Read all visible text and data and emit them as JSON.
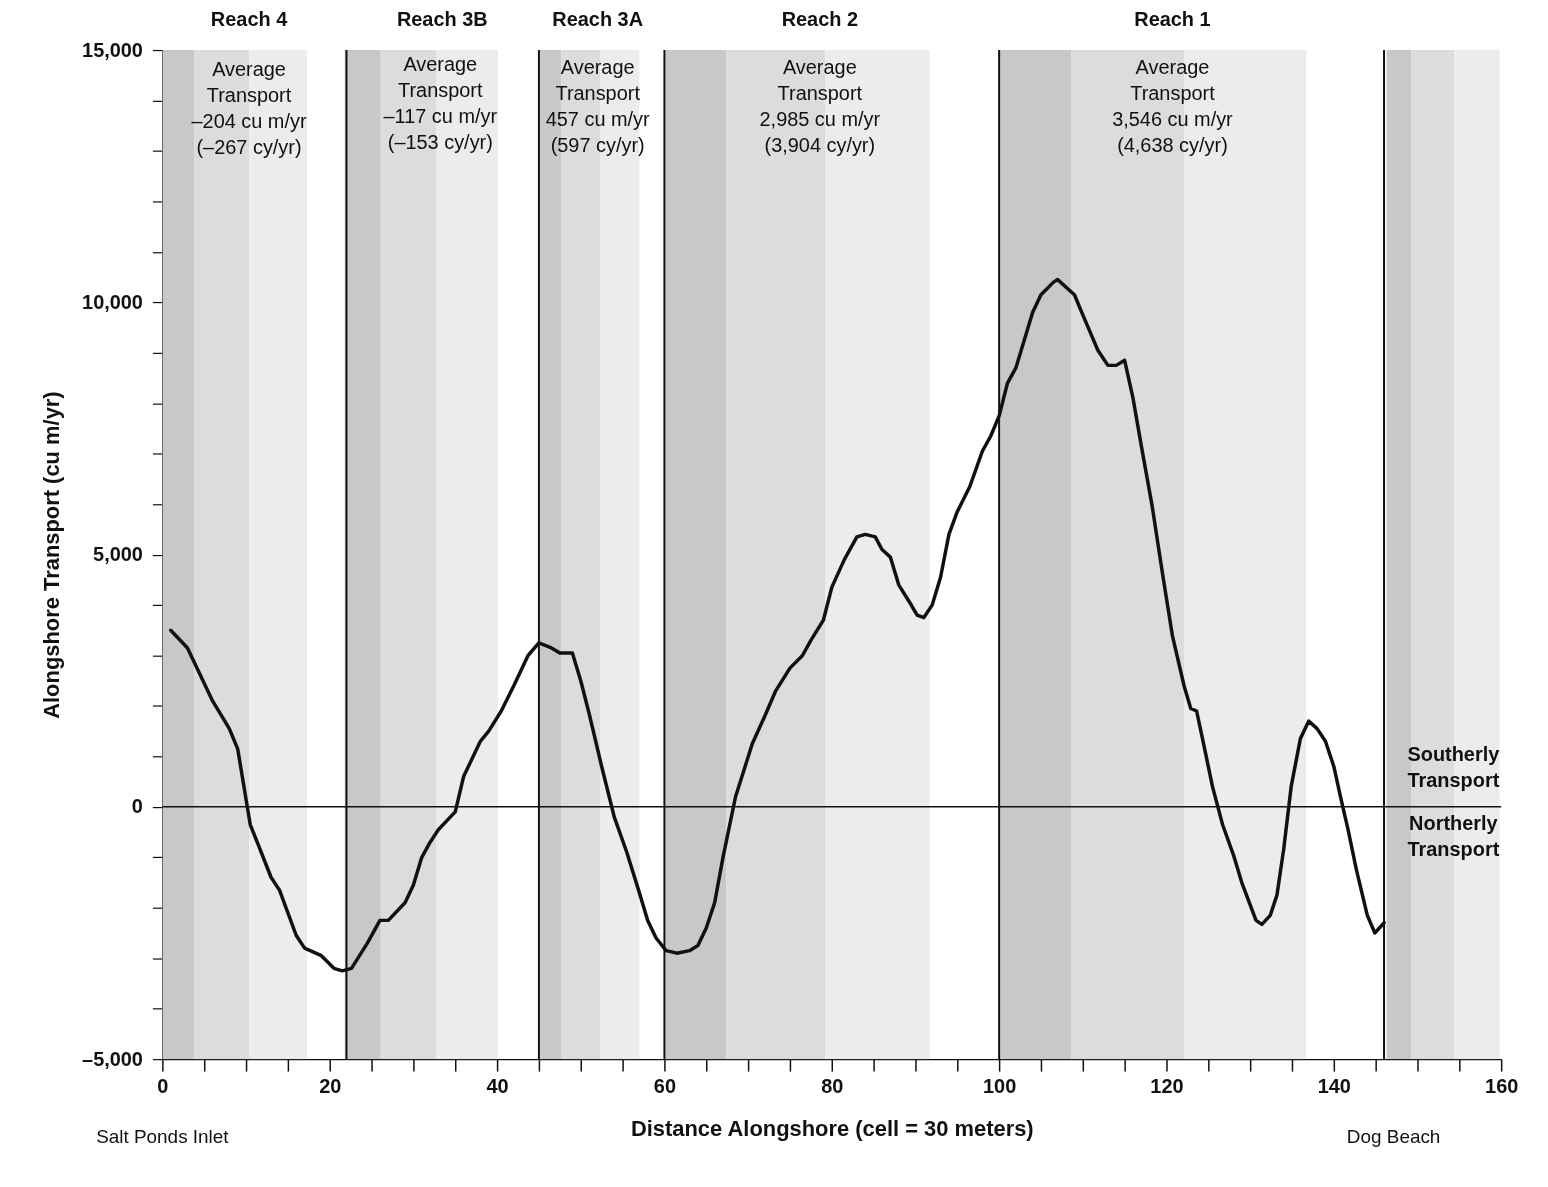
{
  "chart_data": {
    "type": "line",
    "xlabel": "Distance Alongshore (cell = 30 meters)",
    "ylabel": "Alongshore Transport (cu m/yr)",
    "xlim": [
      0,
      160
    ],
    "ylim": [
      -5000,
      15000
    ],
    "xticks": [
      0,
      {
        "value": 5,
        "label": null
      },
      {
        "value": 10,
        "label": null
      },
      {
        "value": 15,
        "label": null
      },
      20,
      {
        "value": 25,
        "label": null
      },
      {
        "value": 30,
        "label": null
      },
      {
        "value": 35,
        "label": null
      },
      40,
      {
        "value": 45,
        "label": null
      },
      {
        "value": 50,
        "label": null
      },
      {
        "value": 55,
        "label": null
      },
      60,
      {
        "value": 65,
        "label": null
      },
      {
        "value": 70,
        "label": null
      },
      {
        "value": 75,
        "label": null
      },
      80,
      {
        "value": 85,
        "label": null
      },
      {
        "value": 90,
        "label": null
      },
      {
        "value": 95,
        "label": null
      },
      100,
      {
        "value": 105,
        "label": null
      },
      {
        "value": 110,
        "label": null
      },
      {
        "value": 115,
        "label": null
      },
      120,
      {
        "value": 125,
        "label": null
      },
      {
        "value": 130,
        "label": null
      },
      {
        "value": 135,
        "label": null
      },
      140,
      {
        "value": 145,
        "label": null
      },
      {
        "value": 150,
        "label": null
      },
      {
        "value": 155,
        "label": null
      },
      160
    ],
    "yticks": [
      {
        "value": -5000,
        "label": "–5,000"
      },
      {
        "value": -4000,
        "label": null
      },
      {
        "value": -3000,
        "label": null
      },
      {
        "value": -2000,
        "label": null
      },
      {
        "value": -1000,
        "label": null
      },
      0,
      {
        "value": 1000,
        "label": null
      },
      {
        "value": 2000,
        "label": null
      },
      {
        "value": 3000,
        "label": null
      },
      {
        "value": 4000,
        "label": null
      },
      {
        "value": 5000,
        "label": "5,000"
      },
      {
        "value": 6000,
        "label": null
      },
      {
        "value": 7000,
        "label": null
      },
      {
        "value": 8000,
        "label": null
      },
      {
        "value": 9000,
        "label": null
      },
      {
        "value": 10000,
        "label": "10,000"
      },
      {
        "value": 11000,
        "label": null
      },
      {
        "value": 12000,
        "label": null
      },
      {
        "value": 13000,
        "label": null
      },
      {
        "value": 14000,
        "label": null
      },
      {
        "value": 15000,
        "label": "15,000"
      }
    ],
    "grid": false,
    "marker": "none",
    "line_style": "solid",
    "series": [
      {
        "color": "#111111",
        "x": [
          1,
          3,
          6,
          8,
          9,
          10.5,
          13,
          14,
          16,
          17,
          19,
          20.5,
          21.5,
          22.6,
          24.5,
          26,
          27,
          29,
          30,
          31,
          32,
          33,
          35,
          36,
          38,
          39,
          40.5,
          42,
          43.7,
          45,
          46.5,
          47.5,
          49,
          50,
          51,
          52.5,
          54,
          55.5,
          57,
          58,
          59,
          60.2,
          61.5,
          63,
          64,
          65,
          66,
          67,
          68.5,
          70.5,
          72,
          73.3,
          75,
          76.5,
          77.5,
          79,
          80,
          81.5,
          83,
          84,
          85.2,
          86,
          87,
          88,
          89.5,
          90.2,
          91,
          92,
          93,
          94,
          95,
          96.5,
          98,
          99,
          100,
          101,
          102,
          103,
          104,
          105,
          106.5,
          107,
          108,
          109,
          110,
          111.8,
          113,
          114,
          115,
          116,
          117,
          118.3,
          119.5,
          120.7,
          122.1,
          122.9,
          123.6,
          124.5,
          125.5,
          126.7,
          128,
          129,
          130.7,
          131.4,
          132.4,
          133.2,
          134,
          134.9,
          136,
          137,
          138,
          139,
          140,
          140.8,
          141.7,
          142.7,
          144,
          144.9,
          146
        ],
        "values": [
          3500,
          3150,
          2100,
          1550,
          1150,
          -350,
          -1400,
          -1650,
          -2550,
          -2800,
          -2950,
          -3200,
          -3250,
          -3200,
          -2700,
          -2250,
          -2250,
          -1900,
          -1550,
          -1000,
          -700,
          -450,
          -100,
          600,
          1300,
          1500,
          1900,
          2400,
          3000,
          3250,
          3150,
          3050,
          3050,
          2500,
          1850,
          800,
          -200,
          -900,
          -1700,
          -2250,
          -2600,
          -2850,
          -2900,
          -2850,
          -2750,
          -2400,
          -1900,
          -1000,
          200,
          1250,
          1800,
          2300,
          2750,
          3000,
          3300,
          3700,
          4350,
          4900,
          5350,
          5400,
          5350,
          5100,
          4950,
          4400,
          4000,
          3800,
          3750,
          4000,
          4550,
          5400,
          5850,
          6350,
          7050,
          7350,
          7750,
          8400,
          8700,
          9250,
          9800,
          10150,
          10400,
          10450,
          10300,
          10150,
          9750,
          9050,
          8750,
          8750,
          8850,
          8100,
          7150,
          5950,
          4650,
          3400,
          2400,
          1950,
          1900,
          1200,
          400,
          -350,
          -950,
          -1500,
          -2250,
          -2330,
          -2150,
          -1750,
          -850,
          400,
          1350,
          1700,
          1550,
          1300,
          800,
          200,
          -450,
          -1250,
          -2150,
          -2500,
          -2300
        ]
      }
    ],
    "bands": [
      {
        "axis": "x",
        "from": 0,
        "to": 3.8,
        "color": "#c8c8c8"
      },
      {
        "axis": "x",
        "from": 3.8,
        "to": 10.4,
        "color": "#dcdcdc"
      },
      {
        "axis": "x",
        "from": 10.4,
        "to": 17.3,
        "color": "#ececec"
      },
      {
        "axis": "x",
        "from": 21.8,
        "to": 26.1,
        "color": "#c8c8c8"
      },
      {
        "axis": "x",
        "from": 26.1,
        "to": 32.7,
        "color": "#dcdcdc"
      },
      {
        "axis": "x",
        "from": 32.7,
        "to": 40.1,
        "color": "#ececec"
      },
      {
        "axis": "x",
        "from": 44.9,
        "to": 47.7,
        "color": "#c8c8c8"
      },
      {
        "axis": "x",
        "from": 47.7,
        "to": 52.3,
        "color": "#dcdcdc"
      },
      {
        "axis": "x",
        "from": 52.3,
        "to": 57,
        "color": "#ececec"
      },
      {
        "axis": "x",
        "from": 60.1,
        "to": 67.4,
        "color": "#c8c8c8"
      },
      {
        "axis": "x",
        "from": 67.4,
        "to": 79.2,
        "color": "#dcdcdc"
      },
      {
        "axis": "x",
        "from": 79.2,
        "to": 91.7,
        "color": "#ececec"
      },
      {
        "axis": "x",
        "from": 100,
        "to": 108.6,
        "color": "#c8c8c8"
      },
      {
        "axis": "x",
        "from": 108.6,
        "to": 122.1,
        "color": "#dcdcdc"
      },
      {
        "axis": "x",
        "from": 122.1,
        "to": 136.7,
        "color": "#ececec"
      },
      {
        "axis": "x",
        "from": 146.3,
        "to": 149.3,
        "color": "#c8c8c8"
      },
      {
        "axis": "x",
        "from": 149.3,
        "to": 154.4,
        "color": "#dcdcdc"
      },
      {
        "axis": "x",
        "from": 154.4,
        "to": 159.8,
        "color": "#ececec"
      }
    ],
    "ref_lines": [
      {
        "axis": "x",
        "value": 22,
        "color": "#111111"
      },
      {
        "axis": "x",
        "value": 45,
        "color": "#111111"
      },
      {
        "axis": "x",
        "value": 60,
        "color": "#111111"
      },
      {
        "axis": "x",
        "value": 100,
        "color": "#111111"
      },
      {
        "axis": "x",
        "value": 146,
        "color": "#111111"
      },
      {
        "axis": "y",
        "value": 0,
        "color": "#111111"
      }
    ],
    "annotations": [
      "Reach 4",
      "Reach 3B",
      "Reach 3A",
      "Reach 2",
      "Reach 1",
      "Average\nTransport\n–204 cu m/yr\n(–267 cy/yr)",
      "Average\nTransport\n–117 cu m/yr\n(–153 cy/yr)",
      "Average\nTransport\n457 cu m/yr\n(597 cy/yr)",
      "Average\nTransport\n2,985 cu m/yr\n(3,904 cy/yr)",
      "Average\nTransport\n3,546 cu m/yr\n(4,638 cy/yr)",
      "Southerly\nTransport",
      "Northerly\nTransport",
      "Salt Ponds Inlet",
      "Dog Beach"
    ]
  }
}
